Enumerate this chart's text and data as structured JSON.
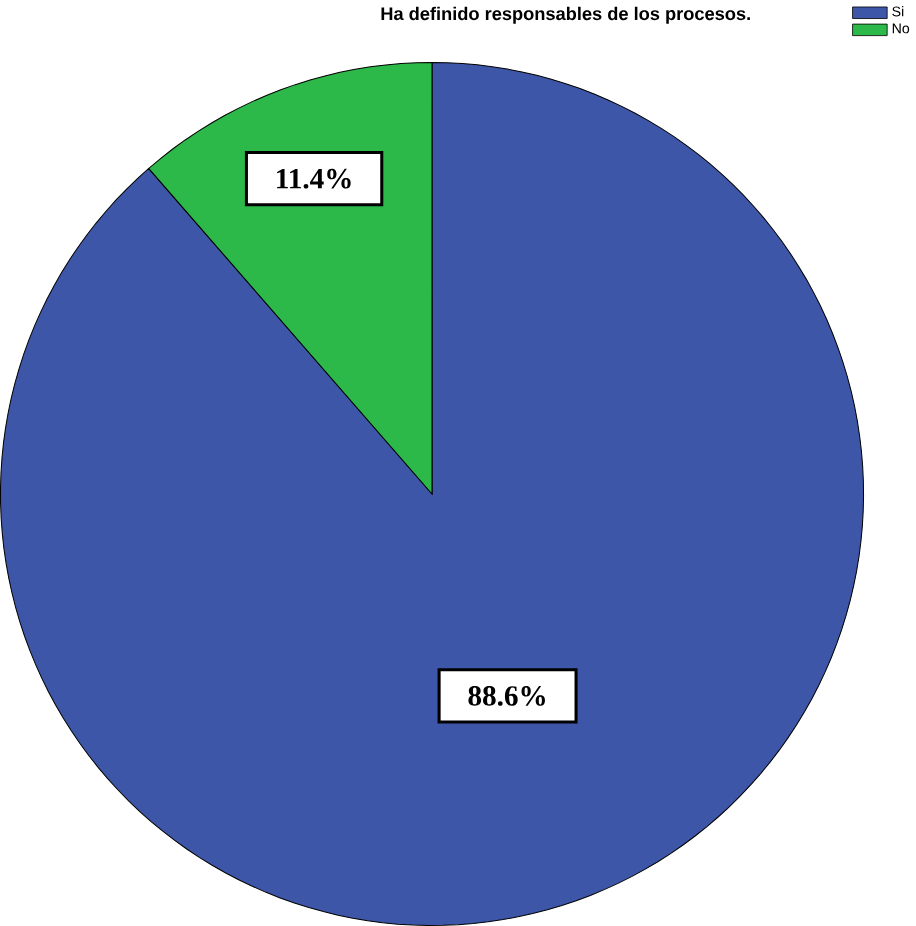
{
  "chart_data": {
    "type": "pie",
    "title": "Ha definido responsables de los procesos.",
    "categories": [
      "Si",
      "No"
    ],
    "values": [
      88.6,
      11.4
    ],
    "colors": [
      "#3d56a8",
      "#2db84a"
    ],
    "value_labels": [
      "88.6%",
      "11.4%"
    ],
    "legend": "top right"
  }
}
